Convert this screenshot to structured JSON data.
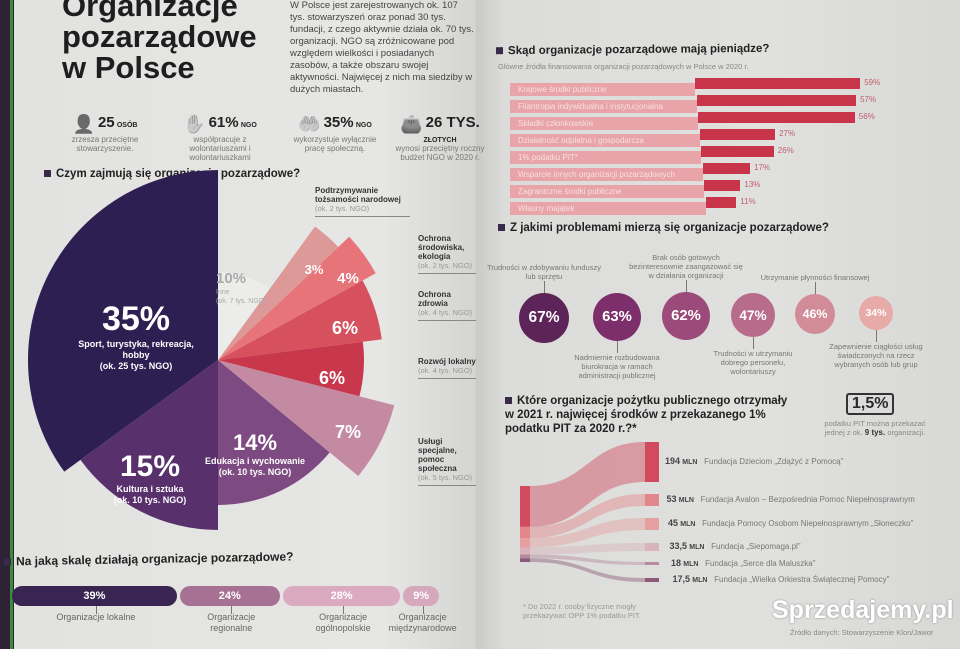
{
  "title": [
    "Organizacje",
    "pozarządowe",
    "w Polsce"
  ],
  "intro": "W Polsce jest zarejestrowanych ok. 107 tys. stowarzyszeń oraz ponad 30 tys. fundacji, z czego aktywnie działa ok. 70 tys. organizacji. NGO są zróżnicowane pod względem wielkości i posiadanych zasobów, a także obszaru swojej aktywności. Najwięcej z nich ma siedziby w dużych miastach.",
  "stats": [
    {
      "icon": "person-icon",
      "num": "25",
      "unit": "OSÓB",
      "text": "zrzesza przeciętne stowarzyszenie."
    },
    {
      "icon": "hands-icon",
      "num": "61%",
      "unit": "NGO",
      "text": "współpracuje z wolontariuszami i wolontariuszkami"
    },
    {
      "icon": "helping-hand-icon",
      "num": "35%",
      "unit": "NGO",
      "text": "wykorzystuje wyłącznie pracę społeczną."
    },
    {
      "icon": "wallet-icon",
      "num": "26 TYS.",
      "unit": "ZŁOTYCH",
      "text": "wynosi przeciętny roczny budżet NGO w 2020 r."
    }
  ],
  "chart_data": [
    {
      "type": "pie",
      "title": "Czym zajmują się organizacje pozarządowe?",
      "slices": [
        {
          "value": 35,
          "label": "35%",
          "name": "Sport, turystyka, rekreacja, hobby",
          "note": "(ok. 25 tys. NGO)",
          "color": "#2e1f52"
        },
        {
          "value": 15,
          "label": "15%",
          "name": "Kultura i sztuka",
          "note": "(ok. 10 tys. NGO)",
          "color": "#58306c"
        },
        {
          "value": 14,
          "label": "14%",
          "name": "Edukacja i wychowanie",
          "note": "(ok. 10 tys. NGO)",
          "color": "#7d4b82"
        },
        {
          "value": 7,
          "label": "7%",
          "name": "Usługi specjalne, pomoc społeczna",
          "note": "(ok. 5 tys. NGO)",
          "color": "#c48aa2"
        },
        {
          "value": 6,
          "label": "6%",
          "name": "Rozwój lokalny",
          "note": "(ok. 4 tys. NGO)",
          "color": "#c8374c"
        },
        {
          "value": 6,
          "label": "6%",
          "name": "Ochrona zdrowia",
          "note": "(ok. 4 tys. NGO)",
          "color": "#d6505e"
        },
        {
          "value": 4,
          "label": "4%",
          "name": "Ochrona środowiska, ekologia",
          "note": "(ok. 2 tys. NGO)",
          "color": "#e67478"
        },
        {
          "value": 3,
          "label": "3%",
          "name": "Podtrzymywanie tożsamości narodowej",
          "note": "(ok. 2 tys. NGO)",
          "color": "#dd9898"
        },
        {
          "value": 10,
          "label": "10%",
          "name": "Inne",
          "note": "(ok. 7 tys. NGO)",
          "color": "#ececea"
        }
      ]
    },
    {
      "type": "bar",
      "title": "Na jaką skalę działają organizacje pozarządowe?",
      "categories": [
        "Organizacje lokalne",
        "Organizacje regionalne",
        "Organizacje ogólnopolskie",
        "Organizacje międzynarodowe"
      ],
      "values": [
        39,
        24,
        28,
        9
      ],
      "labels": [
        "39%",
        "24%",
        "28%",
        "9%"
      ],
      "colors": [
        "#3a2552",
        "#a77193",
        "#dcaac0",
        "#d6a8bc"
      ]
    },
    {
      "type": "bar",
      "title": "Skąd organizacje pozarządowe mają pieniądze?",
      "subtitle": "Główne źródła finansowania organizacji pozarządowych w Polsce w 2020 r.",
      "categories": [
        "Krajowe środki publiczne",
        "Filantropia indywidualna i instytucjonalna",
        "Składki członkowskie",
        "Działalność odpłatna i gospodarcza",
        "1% podatku PIT*",
        "Wsparcie innych organizacji pozarządowych",
        "Zagraniczne środki publiczne",
        "Własny majątek"
      ],
      "values": [
        59,
        57,
        56,
        27,
        26,
        17,
        13,
        11
      ],
      "labels": [
        "59%",
        "57%",
        "56%",
        "27%",
        "26%",
        "17%",
        "13%",
        "11%"
      ],
      "xlim": [
        0,
        60
      ]
    },
    {
      "type": "bubble",
      "title": "Z jakimi problemami mierzą się organizacje pozarządowe?",
      "items": [
        {
          "value": 67,
          "label": "67%",
          "text": "Trudności w zdobywaniu funduszy lub sprzętu",
          "pos": "top",
          "color": "#5c2458"
        },
        {
          "value": 63,
          "label": "63%",
          "text": "Nadmiernie rozbudowana biurokracja w ramach administracji publicznej",
          "pos": "bottom",
          "color": "#7c2f6a"
        },
        {
          "value": 62,
          "label": "62%",
          "text": "Brak osób gotowych bezinteresownie zaangażować się w działania organizacji",
          "pos": "top",
          "color": "#9b4a7a"
        },
        {
          "value": 47,
          "label": "47%",
          "text": "Trudności w utrzymaniu dobrego personelu, wolontariuszy",
          "pos": "bottom",
          "color": "#b86c8b"
        },
        {
          "value": 46,
          "label": "46%",
          "text": "Utrzymanie płynności finansowej",
          "pos": "top",
          "color": "#d18c98"
        },
        {
          "value": 34,
          "label": "34%",
          "text": "Zapewnienie ciągłości usług świadczonych na rzecz wybranych osób lub grup",
          "pos": "bottom",
          "color": "#e8aaa6"
        }
      ]
    },
    {
      "type": "sankey",
      "title": "Które organizacje pożytku publicznego otrzymały w 2021 r. najwięcej środków z przekazanego 1% podatku PIT za 2020 r.?*",
      "unit": "MLN",
      "items": [
        {
          "value": 194,
          "label": "194",
          "name": "Fundacja Dzieciom „Zdążyć z Pomocą”",
          "color": "#d24a5e"
        },
        {
          "value": 53,
          "label": "53",
          "name": "Fundacja Avalon – Bezpośrednia Pomoc Niepełnosprawnym",
          "color": "#e2868a"
        },
        {
          "value": 45,
          "label": "45",
          "name": "Fundacja Pomocy Osobom Niepełnosprawnym „Słoneczko”",
          "color": "#e6a0a0"
        },
        {
          "value": 33.5,
          "label": "33,5",
          "name": "Fundacja „Siepomaga.pl”",
          "color": "#d8b2bc"
        },
        {
          "value": 18,
          "label": "18",
          "name": "Fundacja „Serce dla Maluszka”",
          "color": "#b88aa0"
        },
        {
          "value": 17.5,
          "label": "17,5",
          "name": "Fundacja „Wielka Orkiestra Świątecznej Pomocy”",
          "color": "#8a5a78"
        }
      ]
    }
  ],
  "pit_badge": {
    "value": "1,5%",
    "text_a": "podatku PIT można przekazać jednej z ok.",
    "text_b": "9 tys.",
    "text_c": "organizacji."
  },
  "footnote": "* Do 2022 r. osoby fizyczne mogły przekazywać OPP 1% podatku PIT.",
  "source": "Źródło danych: Stowarzyszenie Klon/Jawor",
  "watermark": "Sprzedajemy.pl",
  "colors": {
    "accent": "#c8344a",
    "dark": "#2e1f52"
  }
}
